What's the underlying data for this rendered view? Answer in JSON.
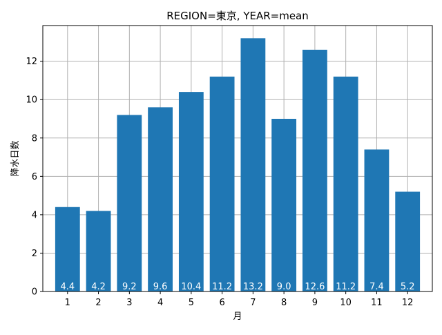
{
  "chart_data": {
    "type": "bar",
    "title": "REGION=東京, YEAR=mean",
    "xlabel": "月",
    "ylabel": "降水日数",
    "categories": [
      "1",
      "2",
      "3",
      "4",
      "5",
      "6",
      "7",
      "8",
      "9",
      "10",
      "11",
      "12"
    ],
    "values": [
      4.4,
      4.2,
      9.2,
      9.6,
      10.4,
      11.2,
      13.2,
      9.0,
      12.6,
      11.2,
      7.4,
      5.2
    ],
    "data_labels": [
      "4.4",
      "4.2",
      "9.2",
      "9.6",
      "10.4",
      "11.2",
      "13.2",
      "9.0",
      "12.6",
      "11.2",
      "7.4",
      "5.2"
    ],
    "ylim": [
      0,
      13.86
    ],
    "yticks": [
      0,
      2,
      4,
      6,
      8,
      10,
      12
    ],
    "grid": true,
    "bar_color": "#1f77b4",
    "grid_color": "#b0b0b0",
    "label_color": "#ffffff"
  }
}
